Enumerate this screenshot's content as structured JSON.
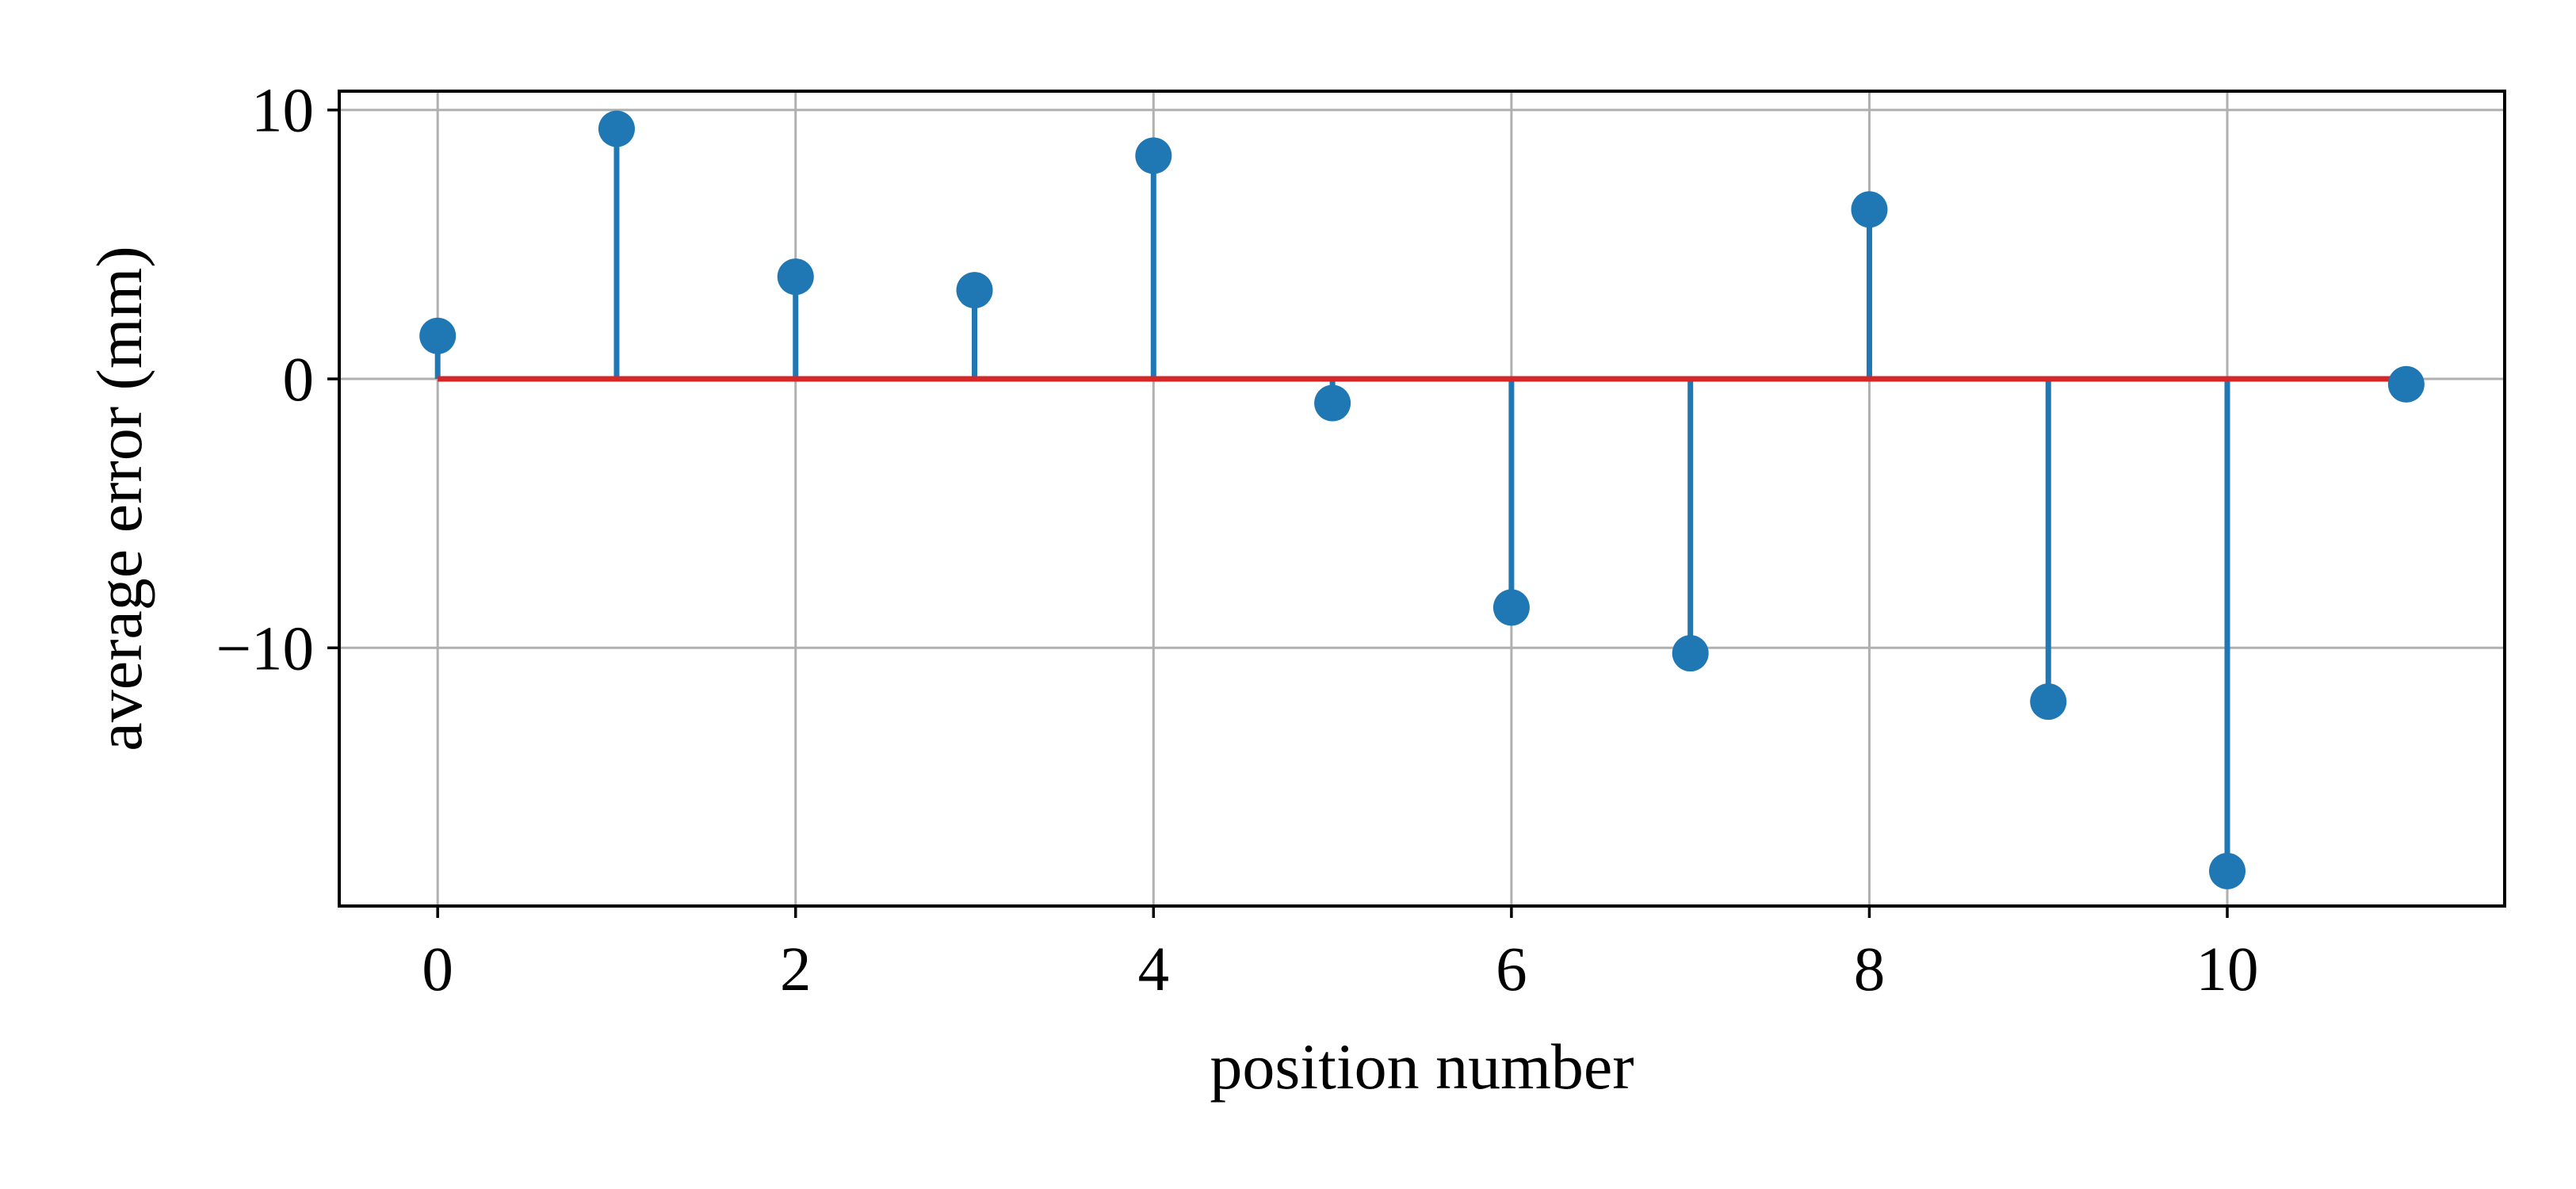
{
  "chart_data": {
    "type": "stem",
    "xlabel": "position number",
    "ylabel": "average error (mm)",
    "x": [
      0,
      1,
      2,
      3,
      4,
      5,
      6,
      7,
      8,
      9,
      10,
      11
    ],
    "series": [
      {
        "values": [
          1.6,
          9.3,
          3.8,
          3.3,
          8.3,
          -0.9,
          -8.5,
          -10.2,
          6.3,
          -12.0,
          -18.3,
          -0.2
        ]
      }
    ],
    "baseline": 0,
    "xlim": [
      -0.55,
      11.55
    ],
    "ylim": [
      -19.6,
      10.7
    ],
    "xticks": [
      0,
      2,
      4,
      6,
      8,
      10
    ],
    "xtick_labels": [
      "0",
      "2",
      "4",
      "6",
      "8",
      "10"
    ],
    "yticks": [
      10,
      0,
      -10
    ],
    "ytick_labels": [
      "10",
      "0",
      "−10"
    ],
    "grid": true,
    "colors": {
      "stem": "#1f77b4",
      "marker": "#1f77b4",
      "baseline": "#d62728",
      "grid": "#b0b0b0",
      "axes": "#000000"
    }
  }
}
